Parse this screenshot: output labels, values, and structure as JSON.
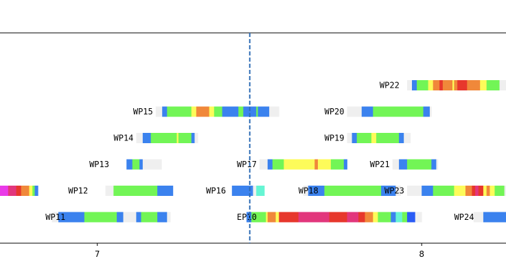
{
  "chart_data": {
    "type": "timeline",
    "xlim": [
      6.7,
      8.26
    ],
    "x_ticks": [
      {
        "value": 7,
        "label": "7"
      },
      {
        "value": 8,
        "label": "8"
      }
    ],
    "marker_line": {
      "x": 7.47,
      "style": "dashed",
      "color": "#2f6db5"
    },
    "colors": {
      "blue": "#3b82ee",
      "green": "#72f556",
      "yellow": "#fdfb5a",
      "orange": "#f0883a",
      "red": "#e7372c",
      "pink": "#e2367c",
      "magenta": "#e93ae8",
      "cyan": "#66f5d3",
      "brightblue": "#2a5cf5",
      "gap": "#efefef",
      "axis": "#000000"
    },
    "rows": [
      {
        "label": "WP11",
        "lane": 1,
        "label_x": 6.91,
        "segments": [
          {
            "x0": 6.86,
            "x1": 6.88,
            "c": "gap"
          },
          {
            "x0": 6.88,
            "x1": 6.96,
            "c": "blue"
          },
          {
            "x0": 6.96,
            "x1": 7.06,
            "c": "green"
          },
          {
            "x0": 7.06,
            "x1": 7.08,
            "c": "blue"
          },
          {
            "x0": 7.08,
            "x1": 7.12,
            "c": "gap"
          },
          {
            "x0": 7.12,
            "x1": 7.135,
            "c": "blue"
          },
          {
            "x0": 7.135,
            "x1": 7.185,
            "c": "green"
          },
          {
            "x0": 7.185,
            "x1": 7.215,
            "c": "blue"
          },
          {
            "x0": 7.215,
            "x1": 7.225,
            "c": "gap"
          }
        ]
      },
      {
        "label": "WP12",
        "lane": 2,
        "label_x": 6.98,
        "segments": [
          {
            "x0": 6.7,
            "x1": 6.725,
            "c": "magenta"
          },
          {
            "x0": 6.725,
            "x1": 6.75,
            "c": "pink"
          },
          {
            "x0": 6.75,
            "x1": 6.765,
            "c": "red"
          },
          {
            "x0": 6.765,
            "x1": 6.79,
            "c": "orange"
          },
          {
            "x0": 6.79,
            "x1": 6.8,
            "c": "yellow"
          },
          {
            "x0": 6.8,
            "x1": 6.807,
            "c": "green"
          },
          {
            "x0": 6.807,
            "x1": 6.817,
            "c": "blue"
          },
          {
            "x0": 7.025,
            "x1": 7.05,
            "c": "gap"
          },
          {
            "x0": 7.05,
            "x1": 7.185,
            "c": "green"
          },
          {
            "x0": 7.185,
            "x1": 7.233,
            "c": "blue"
          }
        ]
      },
      {
        "label": "WP13",
        "lane": 3,
        "label_x": 7.045,
        "segments": [
          {
            "x0": 7.09,
            "x1": 7.108,
            "c": "blue"
          },
          {
            "x0": 7.108,
            "x1": 7.13,
            "c": "green"
          },
          {
            "x0": 7.13,
            "x1": 7.14,
            "c": "blue"
          },
          {
            "x0": 7.14,
            "x1": 7.198,
            "c": "gap"
          }
        ]
      },
      {
        "label": "WP14",
        "lane": 4,
        "label_x": 7.12,
        "segments": [
          {
            "x0": 7.12,
            "x1": 7.14,
            "c": "gap"
          },
          {
            "x0": 7.14,
            "x1": 7.165,
            "c": "blue"
          },
          {
            "x0": 7.165,
            "x1": 7.245,
            "c": "green"
          },
          {
            "x0": 7.245,
            "x1": 7.25,
            "c": "yellow"
          },
          {
            "x0": 7.25,
            "x1": 7.29,
            "c": "green"
          },
          {
            "x0": 7.29,
            "x1": 7.3,
            "c": "blue"
          },
          {
            "x0": 7.3,
            "x1": 7.31,
            "c": "gap"
          }
        ]
      },
      {
        "label": "WP15",
        "lane": 5,
        "label_x": 7.18,
        "segments": [
          {
            "x0": 7.18,
            "x1": 7.2,
            "c": "gap"
          },
          {
            "x0": 7.2,
            "x1": 7.215,
            "c": "blue"
          },
          {
            "x0": 7.215,
            "x1": 7.29,
            "c": "green"
          },
          {
            "x0": 7.29,
            "x1": 7.305,
            "c": "yellow"
          },
          {
            "x0": 7.305,
            "x1": 7.345,
            "c": "orange"
          },
          {
            "x0": 7.345,
            "x1": 7.36,
            "c": "yellow"
          },
          {
            "x0": 7.36,
            "x1": 7.385,
            "c": "green"
          },
          {
            "x0": 7.385,
            "x1": 7.435,
            "c": "blue"
          },
          {
            "x0": 7.435,
            "x1": 7.45,
            "c": "green"
          },
          {
            "x0": 7.45,
            "x1": 7.49,
            "c": "blue"
          },
          {
            "x0": 7.49,
            "x1": 7.495,
            "c": "green"
          },
          {
            "x0": 7.495,
            "x1": 7.53,
            "c": "blue"
          },
          {
            "x0": 7.53,
            "x1": 7.56,
            "c": "gap"
          }
        ]
      },
      {
        "label": "WP16",
        "lane": 2,
        "label_x": 7.405,
        "segments": [
          {
            "x0": 7.415,
            "x1": 7.48,
            "c": "blue"
          },
          {
            "x0": 7.48,
            "x1": 7.49,
            "c": "gap"
          },
          {
            "x0": 7.49,
            "x1": 7.515,
            "c": "cyan"
          }
        ]
      },
      {
        "label": "WP17",
        "lane": 3,
        "label_x": 7.5,
        "segments": [
          {
            "x0": 7.5,
            "x1": 7.525,
            "c": "gap"
          },
          {
            "x0": 7.525,
            "x1": 7.54,
            "c": "blue"
          },
          {
            "x0": 7.54,
            "x1": 7.575,
            "c": "green"
          },
          {
            "x0": 7.575,
            "x1": 7.67,
            "c": "yellow"
          },
          {
            "x0": 7.67,
            "x1": 7.68,
            "c": "orange"
          },
          {
            "x0": 7.68,
            "x1": 7.72,
            "c": "yellow"
          },
          {
            "x0": 7.72,
            "x1": 7.76,
            "c": "green"
          },
          {
            "x0": 7.76,
            "x1": 7.77,
            "c": "blue"
          }
        ]
      },
      {
        "label": "WP18",
        "lane": 2,
        "label_x": 7.69,
        "segments": [
          {
            "x0": 7.635,
            "x1": 7.65,
            "c": "gap"
          },
          {
            "x0": 7.65,
            "x1": 7.7,
            "c": "blue"
          },
          {
            "x0": 7.7,
            "x1": 7.875,
            "c": "green"
          },
          {
            "x0": 7.875,
            "x1": 7.92,
            "c": "blue"
          },
          {
            "x0": 7.92,
            "x1": 7.935,
            "c": "gap"
          }
        ]
      },
      {
        "label": "WP19",
        "lane": 4,
        "label_x": 7.77,
        "segments": [
          {
            "x0": 7.77,
            "x1": 7.785,
            "c": "gap"
          },
          {
            "x0": 7.785,
            "x1": 7.8,
            "c": "blue"
          },
          {
            "x0": 7.8,
            "x1": 7.845,
            "c": "green"
          },
          {
            "x0": 7.845,
            "x1": 7.86,
            "c": "yellow"
          },
          {
            "x0": 7.86,
            "x1": 7.93,
            "c": "green"
          },
          {
            "x0": 7.93,
            "x1": 7.945,
            "c": "blue"
          },
          {
            "x0": 7.945,
            "x1": 7.965,
            "c": "gap"
          }
        ]
      },
      {
        "label": "WP20",
        "lane": 5,
        "label_x": 7.77,
        "segments": [
          {
            "x0": 7.77,
            "x1": 7.815,
            "c": "gap"
          },
          {
            "x0": 7.815,
            "x1": 7.85,
            "c": "blue"
          },
          {
            "x0": 7.85,
            "x1": 8.005,
            "c": "green"
          },
          {
            "x0": 8.005,
            "x1": 8.025,
            "c": "blue"
          },
          {
            "x0": 8.025,
            "x1": 8.03,
            "c": "gap"
          }
        ]
      },
      {
        "label": "WP21",
        "lane": 3,
        "label_x": 7.91,
        "segments": [
          {
            "x0": 7.91,
            "x1": 7.93,
            "c": "gap"
          },
          {
            "x0": 7.93,
            "x1": 7.955,
            "c": "blue"
          },
          {
            "x0": 7.955,
            "x1": 8.03,
            "c": "green"
          },
          {
            "x0": 8.03,
            "x1": 8.045,
            "c": "blue"
          },
          {
            "x0": 8.045,
            "x1": 8.05,
            "c": "gap"
          }
        ]
      },
      {
        "label": "WP22",
        "lane": 6,
        "label_x": 7.94,
        "segments": [
          {
            "x0": 7.955,
            "x1": 7.97,
            "c": "gap"
          },
          {
            "x0": 7.97,
            "x1": 7.985,
            "c": "blue"
          },
          {
            "x0": 7.985,
            "x1": 8.02,
            "c": "green"
          },
          {
            "x0": 8.02,
            "x1": 8.035,
            "c": "yellow"
          },
          {
            "x0": 8.035,
            "x1": 8.055,
            "c": "orange"
          },
          {
            "x0": 8.055,
            "x1": 8.065,
            "c": "red"
          },
          {
            "x0": 8.065,
            "x1": 8.095,
            "c": "orange"
          },
          {
            "x0": 8.095,
            "x1": 8.1,
            "c": "yellow"
          },
          {
            "x0": 8.1,
            "x1": 8.11,
            "c": "orange"
          },
          {
            "x0": 8.11,
            "x1": 8.14,
            "c": "red"
          },
          {
            "x0": 8.14,
            "x1": 8.18,
            "c": "orange"
          },
          {
            "x0": 8.18,
            "x1": 8.2,
            "c": "yellow"
          },
          {
            "x0": 8.2,
            "x1": 8.24,
            "c": "green"
          },
          {
            "x0": 8.24,
            "x1": 8.26,
            "c": "gap"
          }
        ]
      },
      {
        "label": "WP23",
        "lane": 2,
        "label_x": 7.955,
        "segments": [
          {
            "x0": 7.955,
            "x1": 8.0,
            "c": "gap"
          },
          {
            "x0": 8.0,
            "x1": 8.035,
            "c": "blue"
          },
          {
            "x0": 8.035,
            "x1": 8.1,
            "c": "green"
          },
          {
            "x0": 8.1,
            "x1": 8.135,
            "c": "yellow"
          },
          {
            "x0": 8.135,
            "x1": 8.155,
            "c": "orange"
          },
          {
            "x0": 8.155,
            "x1": 8.165,
            "c": "red"
          },
          {
            "x0": 8.165,
            "x1": 8.175,
            "c": "pink"
          },
          {
            "x0": 8.175,
            "x1": 8.19,
            "c": "red"
          },
          {
            "x0": 8.19,
            "x1": 8.2,
            "c": "yellow"
          },
          {
            "x0": 8.2,
            "x1": 8.21,
            "c": "orange"
          },
          {
            "x0": 8.21,
            "x1": 8.225,
            "c": "yellow"
          },
          {
            "x0": 8.225,
            "x1": 8.255,
            "c": "green"
          },
          {
            "x0": 8.255,
            "x1": 8.26,
            "c": "gap"
          }
        ]
      },
      {
        "label": "EP10",
        "lane": 1,
        "label_x": 7.5,
        "segments": [
          {
            "x0": 7.46,
            "x1": 7.475,
            "c": "blue"
          },
          {
            "x0": 7.475,
            "x1": 7.52,
            "c": "green"
          },
          {
            "x0": 7.52,
            "x1": 7.525,
            "c": "yellow"
          },
          {
            "x0": 7.525,
            "x1": 7.55,
            "c": "orange"
          },
          {
            "x0": 7.55,
            "x1": 7.56,
            "c": "yellow"
          },
          {
            "x0": 7.56,
            "x1": 7.62,
            "c": "red"
          },
          {
            "x0": 7.62,
            "x1": 7.715,
            "c": "pink"
          },
          {
            "x0": 7.715,
            "x1": 7.77,
            "c": "red"
          },
          {
            "x0": 7.77,
            "x1": 7.805,
            "c": "pink"
          },
          {
            "x0": 7.805,
            "x1": 7.825,
            "c": "red"
          },
          {
            "x0": 7.825,
            "x1": 7.85,
            "c": "orange"
          },
          {
            "x0": 7.85,
            "x1": 7.865,
            "c": "yellow"
          },
          {
            "x0": 7.865,
            "x1": 7.905,
            "c": "green"
          },
          {
            "x0": 7.905,
            "x1": 7.92,
            "c": "blue"
          },
          {
            "x0": 7.92,
            "x1": 7.94,
            "c": "cyan"
          },
          {
            "x0": 7.94,
            "x1": 7.955,
            "c": "green"
          },
          {
            "x0": 7.955,
            "x1": 7.98,
            "c": "brightblue"
          },
          {
            "x0": 7.98,
            "x1": 8.0,
            "c": "gap"
          }
        ]
      },
      {
        "label": "WP24",
        "lane": 1,
        "label_x": 8.17,
        "segments": [
          {
            "x0": 8.16,
            "x1": 8.19,
            "c": "gap"
          },
          {
            "x0": 8.19,
            "x1": 8.26,
            "c": "blue"
          }
        ]
      }
    ]
  }
}
